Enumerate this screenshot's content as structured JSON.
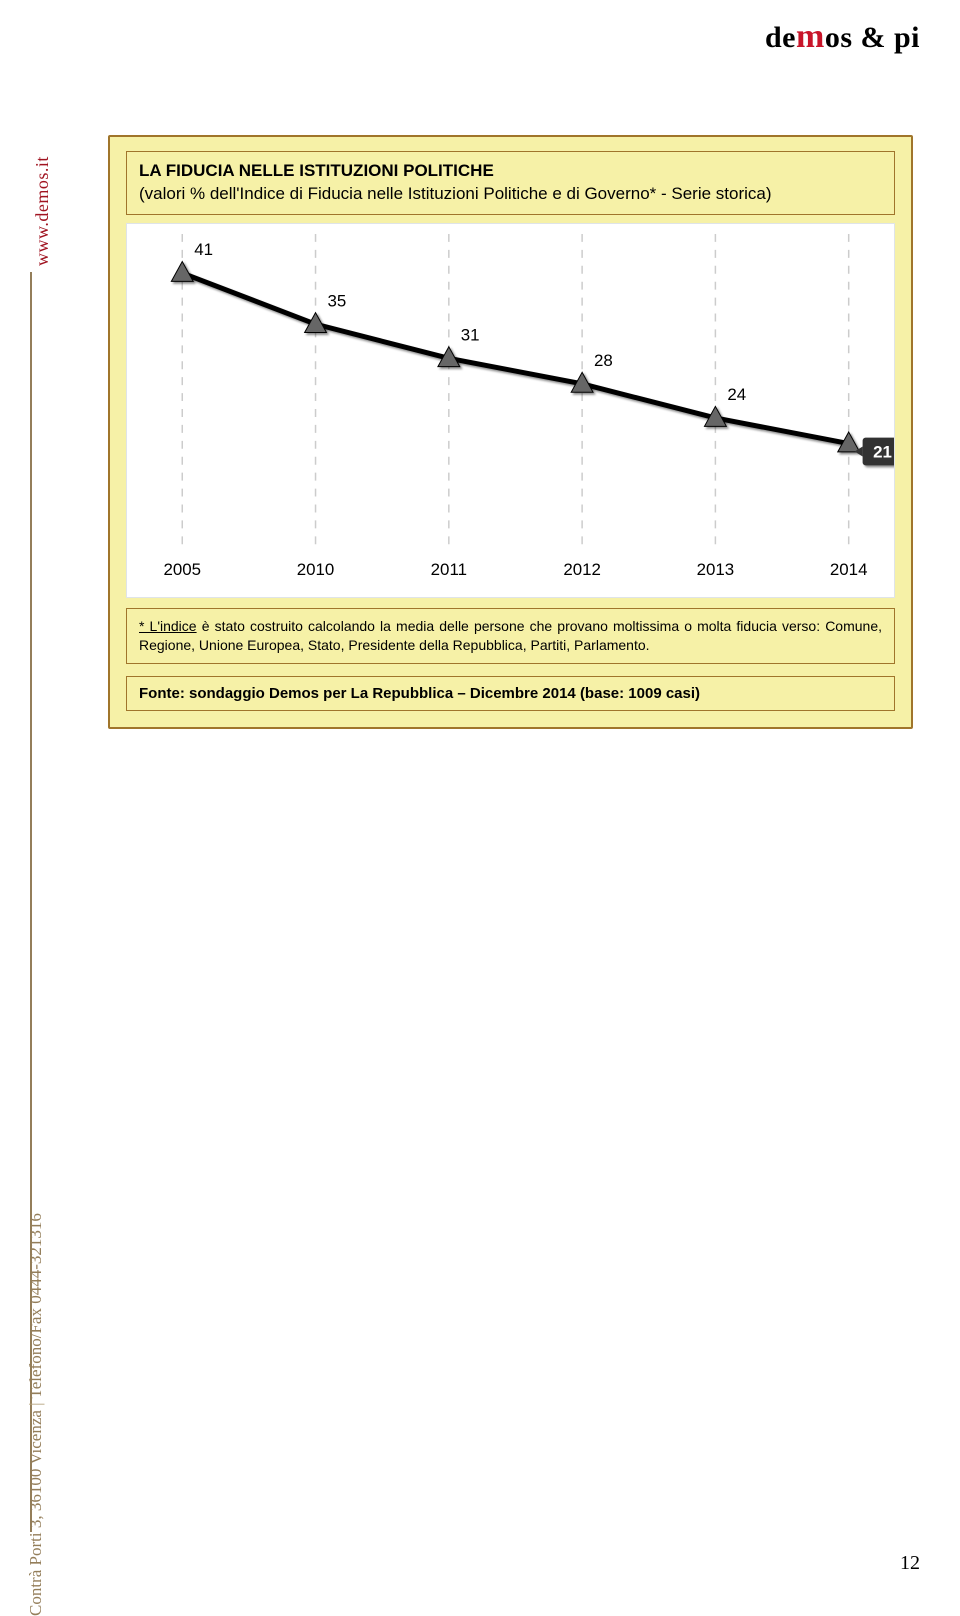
{
  "brand": {
    "pre": "de",
    "m": "m",
    "post": "os & pi"
  },
  "sidebar": {
    "url": "www.demos.it",
    "address_left": "Contrà Porti 3, 36100 Vicenza",
    "address_right": "Telefono/Fax 0444-321316"
  },
  "box": {
    "title_line1": "LA FIDUCIA NELLE ISTITUZIONI POLITICHE",
    "title_line2": "(valori % dell'Indice di Fiducia nelle Istituzioni Politiche e di Governo* - Serie storica)",
    "footnote_lead": "* L'indice",
    "footnote_rest": " è stato costruito calcolando la media delle persone che provano moltissima o molta fiducia verso:  Comune, Regione, Unione Europea, Stato, Presidente della Repubblica, Partiti, Parlamento.",
    "source": "Fonte: sondaggio Demos per La Repubblica – Dicembre 2014 (base: 1009 casi)"
  },
  "chart": {
    "type": "line",
    "background_color": "#ffffff",
    "grid_color": "#cccccc",
    "line_color": "#000000",
    "line_width": 5,
    "marker": {
      "shape": "triangle",
      "fill": "#666666",
      "stroke": "#000000",
      "size": 20
    },
    "highlight_badge": {
      "bg": "#333333",
      "text": "#ffffff",
      "value": "21"
    },
    "ylim": [
      10,
      45
    ],
    "categories": [
      "2005",
      "2010",
      "2011",
      "2012",
      "2013",
      "2014"
    ],
    "values": [
      41,
      35,
      31,
      28,
      24,
      21
    ],
    "label_fontsize": 17,
    "label_color": "#000000"
  },
  "page": {
    "number": "12"
  }
}
